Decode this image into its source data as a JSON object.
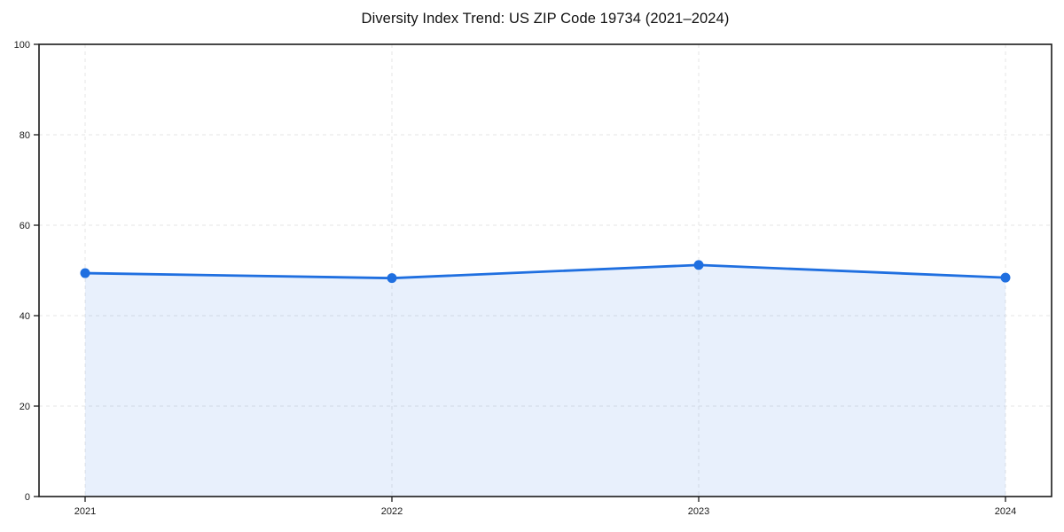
{
  "chart_data": {
    "type": "area",
    "title": "Diversity Index Trend: US ZIP Code 19734 (2021–2024)",
    "categories": [
      "2021",
      "2022",
      "2023",
      "2024"
    ],
    "values": [
      49.4,
      48.3,
      51.2,
      48.4
    ],
    "xlabel": "",
    "ylabel": "",
    "ylim": [
      0,
      100
    ],
    "yticks": [
      0,
      20,
      40,
      60,
      80,
      100
    ],
    "grid": true,
    "grid_style": "dashed",
    "legend": false,
    "colors": {
      "line": "#1f6fe0",
      "marker": "#1f6fe0",
      "fill": "#1f6fe0",
      "fill_opacity": 0.1,
      "grid": "#e6e6e6",
      "axis": "#1a1a1a",
      "tick_label": "#1a1a1a",
      "title": "#111111",
      "background": "#ffffff"
    }
  }
}
